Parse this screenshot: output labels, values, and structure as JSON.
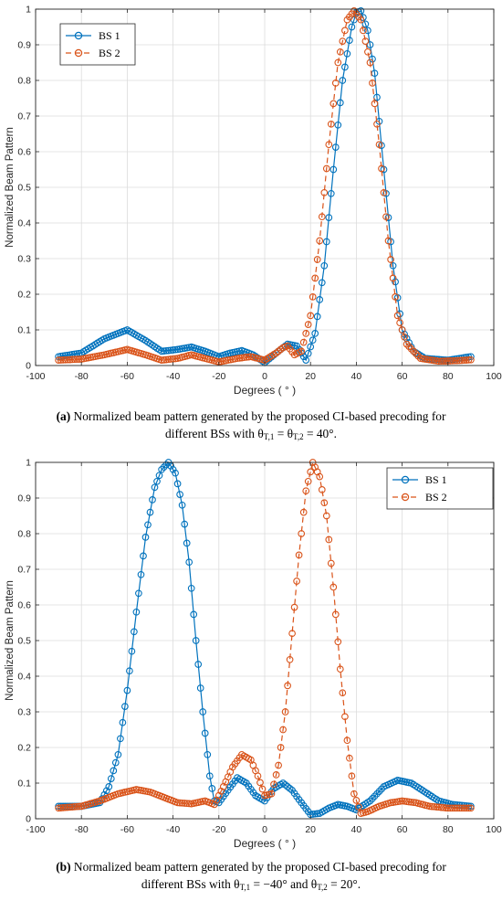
{
  "chart_data": [
    {
      "type": "line",
      "xlabel": "Degrees ( ° )",
      "ylabel": "Normalized Beam Pattern",
      "xlim": [
        -100,
        100
      ],
      "ylim": [
        0,
        1
      ],
      "xticks": [
        -100,
        -80,
        -60,
        -40,
        -20,
        0,
        20,
        40,
        60,
        80,
        100
      ],
      "yticks": [
        0,
        0.1,
        0.2,
        0.3,
        0.4,
        0.5,
        0.6,
        0.7,
        0.8,
        0.9,
        1
      ],
      "grid": true,
      "legend_position": "top-left",
      "series": [
        {
          "name": "BS 1",
          "color": "#0072BD",
          "line": "solid",
          "marker": "circle",
          "points": [
            [
              -90,
              0.025
            ],
            [
              -80,
              0.035
            ],
            [
              -70,
              0.075
            ],
            [
              -60,
              0.1
            ],
            [
              -52,
              0.07
            ],
            [
              -45,
              0.04
            ],
            [
              -38,
              0.045
            ],
            [
              -32,
              0.052
            ],
            [
              -26,
              0.04
            ],
            [
              -20,
              0.025
            ],
            [
              -15,
              0.035
            ],
            [
              -10,
              0.042
            ],
            [
              -5,
              0.03
            ],
            [
              0,
              0.008
            ],
            [
              5,
              0.035
            ],
            [
              10,
              0.06
            ],
            [
              14,
              0.055
            ],
            [
              18,
              0.015
            ],
            [
              22,
              0.09
            ],
            [
              26,
              0.28
            ],
            [
              30,
              0.55
            ],
            [
              34,
              0.8
            ],
            [
              38,
              0.95
            ],
            [
              40,
              0.99
            ],
            [
              42,
              0.995
            ],
            [
              45,
              0.94
            ],
            [
              48,
              0.82
            ],
            [
              52,
              0.55
            ],
            [
              56,
              0.28
            ],
            [
              60,
              0.1
            ],
            [
              65,
              0.04
            ],
            [
              70,
              0.02
            ],
            [
              80,
              0.015
            ],
            [
              90,
              0.025
            ]
          ]
        },
        {
          "name": "BS 2",
          "color": "#D95319",
          "line": "dashed",
          "marker": "circle",
          "points": [
            [
              -90,
              0.015
            ],
            [
              -80,
              0.018
            ],
            [
              -70,
              0.03
            ],
            [
              -60,
              0.045
            ],
            [
              -52,
              0.03
            ],
            [
              -45,
              0.015
            ],
            [
              -38,
              0.02
            ],
            [
              -32,
              0.03
            ],
            [
              -26,
              0.02
            ],
            [
              -20,
              0.01
            ],
            [
              -12,
              0.02
            ],
            [
              -6,
              0.025
            ],
            [
              0,
              0.015
            ],
            [
              5,
              0.035
            ],
            [
              8,
              0.05
            ],
            [
              10,
              0.055
            ],
            [
              13,
              0.03
            ],
            [
              16,
              0.04
            ],
            [
              20,
              0.14
            ],
            [
              24,
              0.35
            ],
            [
              28,
              0.62
            ],
            [
              32,
              0.85
            ],
            [
              36,
              0.97
            ],
            [
              39,
              0.995
            ],
            [
              42,
              0.97
            ],
            [
              46,
              0.85
            ],
            [
              50,
              0.62
            ],
            [
              54,
              0.35
            ],
            [
              58,
              0.14
            ],
            [
              62,
              0.06
            ],
            [
              68,
              0.02
            ],
            [
              76,
              0.012
            ],
            [
              85,
              0.014
            ],
            [
              90,
              0.016
            ]
          ]
        }
      ]
    },
    {
      "type": "line",
      "xlabel": "Degrees ( ° )",
      "ylabel": "Normalized Beam Pattern",
      "xlim": [
        -100,
        100
      ],
      "ylim": [
        0,
        1
      ],
      "xticks": [
        -100,
        -80,
        -60,
        -40,
        -20,
        0,
        20,
        40,
        60,
        80,
        100
      ],
      "yticks": [
        0,
        0.1,
        0.2,
        0.3,
        0.4,
        0.5,
        0.6,
        0.7,
        0.8,
        0.9,
        1
      ],
      "grid": true,
      "legend_position": "top-right",
      "series": [
        {
          "name": "BS 1",
          "color": "#0072BD",
          "line": "solid",
          "marker": "circle",
          "points": [
            [
              -90,
              0.035
            ],
            [
              -80,
              0.035
            ],
            [
              -72,
              0.045
            ],
            [
              -68,
              0.09
            ],
            [
              -64,
              0.18
            ],
            [
              -60,
              0.36
            ],
            [
              -56,
              0.58
            ],
            [
              -52,
              0.79
            ],
            [
              -48,
              0.93
            ],
            [
              -45,
              0.98
            ],
            [
              -42,
              1.0
            ],
            [
              -39,
              0.97
            ],
            [
              -36,
              0.88
            ],
            [
              -33,
              0.72
            ],
            [
              -30,
              0.5
            ],
            [
              -27,
              0.3
            ],
            [
              -24,
              0.12
            ],
            [
              -22,
              0.05
            ],
            [
              -20,
              0.045
            ],
            [
              -16,
              0.08
            ],
            [
              -12,
              0.115
            ],
            [
              -8,
              0.1
            ],
            [
              -4,
              0.065
            ],
            [
              0,
              0.05
            ],
            [
              4,
              0.085
            ],
            [
              8,
              0.1
            ],
            [
              12,
              0.08
            ],
            [
              16,
              0.045
            ],
            [
              20,
              0.012
            ],
            [
              24,
              0.015
            ],
            [
              28,
              0.03
            ],
            [
              32,
              0.04
            ],
            [
              36,
              0.035
            ],
            [
              40,
              0.025
            ],
            [
              46,
              0.05
            ],
            [
              52,
              0.09
            ],
            [
              58,
              0.108
            ],
            [
              64,
              0.1
            ],
            [
              70,
              0.075
            ],
            [
              76,
              0.05
            ],
            [
              82,
              0.04
            ],
            [
              90,
              0.035
            ]
          ]
        },
        {
          "name": "BS 2",
          "color": "#D95319",
          "line": "dashed",
          "marker": "circle",
          "points": [
            [
              -90,
              0.03
            ],
            [
              -80,
              0.035
            ],
            [
              -72,
              0.05
            ],
            [
              -64,
              0.07
            ],
            [
              -56,
              0.082
            ],
            [
              -50,
              0.075
            ],
            [
              -44,
              0.06
            ],
            [
              -38,
              0.045
            ],
            [
              -32,
              0.042
            ],
            [
              -26,
              0.05
            ],
            [
              -22,
              0.04
            ],
            [
              -18,
              0.09
            ],
            [
              -14,
              0.145
            ],
            [
              -10,
              0.18
            ],
            [
              -6,
              0.165
            ],
            [
              -3,
              0.12
            ],
            [
              0,
              0.065
            ],
            [
              3,
              0.07
            ],
            [
              6,
              0.15
            ],
            [
              9,
              0.3
            ],
            [
              12,
              0.52
            ],
            [
              15,
              0.74
            ],
            [
              18,
              0.92
            ],
            [
              21,
              1.0
            ],
            [
              24,
              0.96
            ],
            [
              27,
              0.85
            ],
            [
              30,
              0.65
            ],
            [
              33,
              0.42
            ],
            [
              36,
              0.22
            ],
            [
              39,
              0.07
            ],
            [
              42,
              0.015
            ],
            [
              45,
              0.02
            ],
            [
              50,
              0.035
            ],
            [
              55,
              0.045
            ],
            [
              60,
              0.05
            ],
            [
              66,
              0.045
            ],
            [
              72,
              0.035
            ],
            [
              80,
              0.03
            ],
            [
              90,
              0.03
            ]
          ]
        }
      ]
    }
  ],
  "captions": {
    "a": {
      "label": "(a)",
      "text1": "Normalized beam pattern generated by the proposed CI-based precoding for",
      "text2": "different BSs with θ",
      "sub1": "T,1",
      "mid": " = θ",
      "sub2": "T,2",
      "end": " = 40°."
    },
    "b": {
      "label": "(b)",
      "text1": "Normalized beam pattern generated by the proposed CI-based precoding for",
      "text2": "different BSs with θ",
      "sub1": "T,1",
      "mid": " = −40° and θ",
      "sub2": "T,2",
      "end": " = 20°."
    }
  }
}
